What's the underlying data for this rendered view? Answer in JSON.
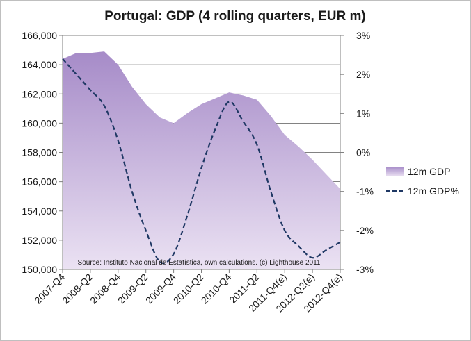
{
  "chart_data": {
    "type": "area+line",
    "title": "Portugal: GDP (4 rolling quarters, EUR m)",
    "source_note": "Source: Instituto Nacional de Estatística, own calculations. (c) Lighthouse 2011",
    "categories": [
      "2007-Q4",
      "2008-Q1",
      "2008-Q2",
      "2008-Q3",
      "2008-Q4",
      "2009-Q1",
      "2009-Q2",
      "2009-Q3",
      "2009-Q4",
      "2010-Q1",
      "2010-Q2",
      "2010-Q3",
      "2010-Q4",
      "2011-Q1",
      "2011-Q2",
      "2011-Q3",
      "2011-Q4(e)",
      "2012-Q1",
      "2012-Q2(e)",
      "2012-Q3",
      "2012-Q4(e)"
    ],
    "x_tick_labels": [
      "2007-Q4",
      "2008-Q2",
      "2008-Q4",
      "2009-Q2",
      "2009-Q4",
      "2010-Q2",
      "2010-Q4",
      "2011-Q2",
      "2011-Q4(e)",
      "2012-Q2(e)",
      "2012-Q4(e)"
    ],
    "y_left": {
      "min": 150000,
      "max": 166000,
      "step": 2000,
      "tick_labels": [
        "150,000",
        "152,000",
        "154,000",
        "156,000",
        "158,000",
        "160,000",
        "162,000",
        "164,000",
        "166,000"
      ]
    },
    "y_right": {
      "min": -3,
      "max": 3,
      "step": 1,
      "tick_labels": [
        "-3%",
        "-2%",
        "-1%",
        "0%",
        "1%",
        "2%",
        "3%"
      ]
    },
    "series": [
      {
        "name": "12m GDP",
        "kind": "area",
        "axis": "left",
        "values": [
          164400,
          164800,
          164800,
          164900,
          164000,
          162500,
          161300,
          160400,
          160000,
          160700,
          161300,
          161700,
          162100,
          161900,
          161600,
          160500,
          159200,
          158400,
          157500,
          156500,
          155500
        ]
      },
      {
        "name": "12m GDP%",
        "kind": "line",
        "axis": "right",
        "style": "dashed",
        "values": [
          2.4,
          2.0,
          1.6,
          1.2,
          0.3,
          -1.0,
          -2.0,
          -2.8,
          -2.6,
          -1.6,
          -0.4,
          0.6,
          1.3,
          0.8,
          0.2,
          -1.0,
          -2.0,
          -2.4,
          -2.7,
          -2.5,
          -2.3
        ]
      }
    ],
    "legend_position": "right",
    "grid": true
  },
  "colors": {
    "area_top": "#a68bc8",
    "area_bottom": "#ebe2f3",
    "line": "#1f3864",
    "grid": "#595959",
    "axis": "#7f7f7f"
  }
}
